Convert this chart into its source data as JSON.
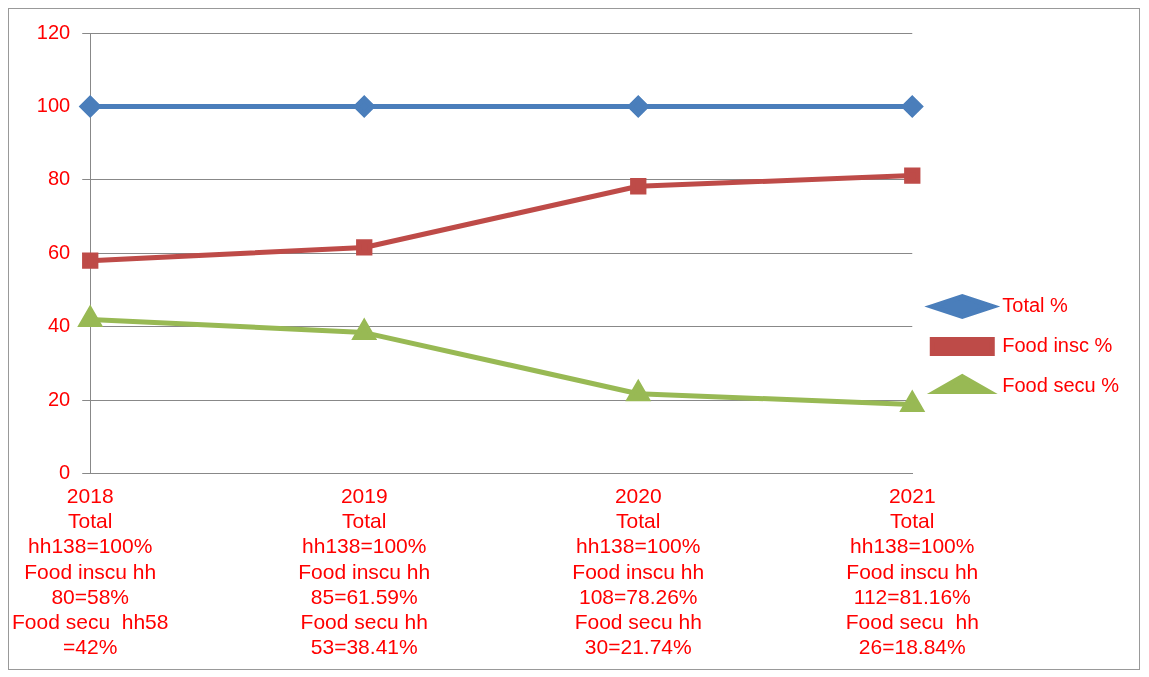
{
  "chart_data": {
    "type": "line",
    "categories": [
      "2018\nTotal\nhh138=100%\nFood inscu hh\n80=58%\nFood secu  hh58\n=42%",
      "2019\nTotal\nhh138=100%\nFood inscu hh\n85=61.59%\nFood secu hh\n53=38.41%",
      "2020\nTotal\nhh138=100%\nFood inscu hh\n108=78.26%\nFood secu hh\n30=21.74%",
      "2021\nTotal\nhh138=100%\nFood inscu hh\n112=81.16%\nFood secu  hh\n26=18.84%"
    ],
    "series": [
      {
        "name": "Total %",
        "color": "#4a7ebb",
        "marker": "diamond",
        "values": [
          100,
          100,
          100,
          100
        ]
      },
      {
        "name": "Food insc %",
        "color": "#be4b48",
        "marker": "square",
        "values": [
          58,
          61.59,
          78.26,
          81.16
        ]
      },
      {
        "name": "Food secu %",
        "color": "#98b954",
        "marker": "triangle",
        "values": [
          42,
          38.41,
          21.74,
          18.84
        ]
      }
    ],
    "ylim": [
      0,
      120
    ],
    "yticks": [
      0,
      20,
      40,
      60,
      80,
      100,
      120
    ],
    "grid": "y",
    "legend": "right"
  }
}
